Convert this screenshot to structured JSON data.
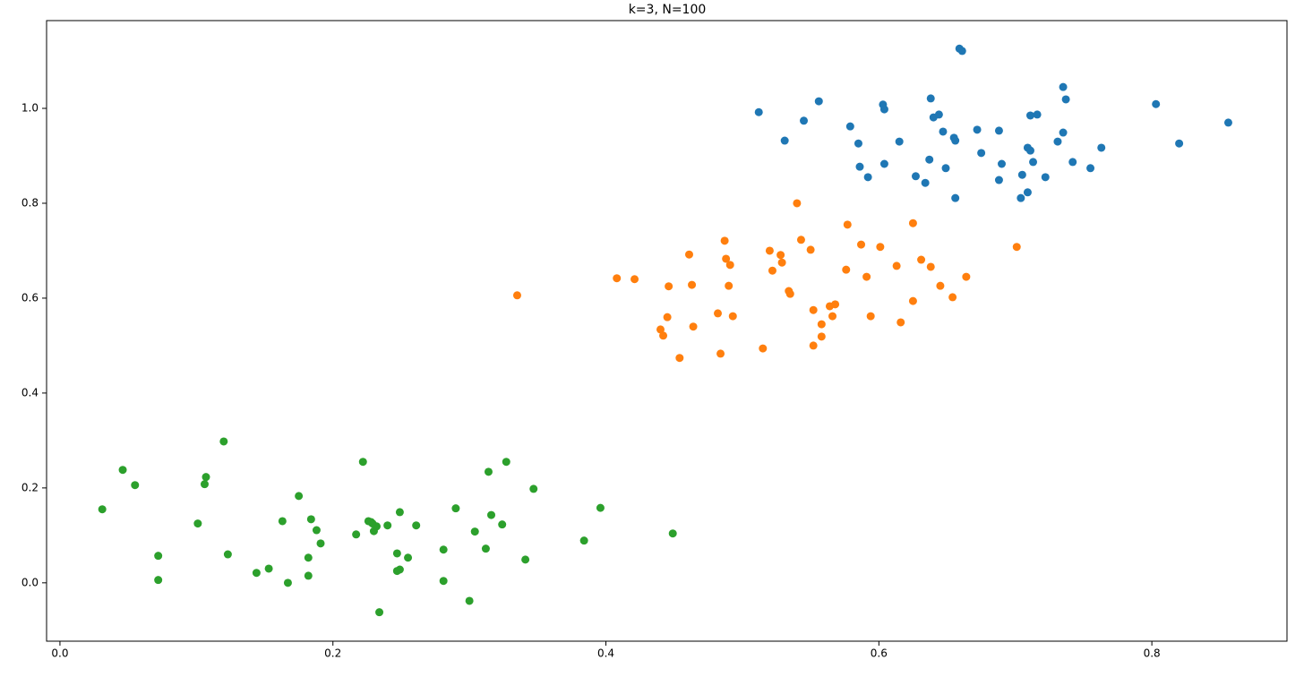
{
  "chart_data": {
    "type": "scatter",
    "title": "k=3, N=100",
    "xlim": [
      -0.0098,
      0.899
    ],
    "ylim": [
      -0.123,
      1.185
    ],
    "xticks": [
      {
        "value": 0,
        "label": "0.0"
      },
      0.2,
      0.4,
      0.6,
      0.8
    ],
    "yticks": [
      {
        "value": 0,
        "label": "0.0"
      },
      0.2,
      0.4,
      0.6,
      0.8,
      {
        "value": 1,
        "label": "1.0"
      }
    ],
    "grid": false,
    "series": [
      {
        "color": "#1f77b4",
        "x": [
          0.512,
          0.531,
          0.545,
          0.556,
          0.579,
          0.585,
          0.586,
          0.592,
          0.603,
          0.604,
          0.604,
          0.615,
          0.627,
          0.634,
          0.637,
          0.638,
          0.64,
          0.644,
          0.647,
          0.649,
          0.655,
          0.656,
          0.656,
          0.659,
          0.661,
          0.672,
          0.675,
          0.688,
          0.688,
          0.69,
          0.704,
          0.705,
          0.709,
          0.709,
          0.711,
          0.711,
          0.713,
          0.716,
          0.722,
          0.731,
          0.735,
          0.735,
          0.737,
          0.742,
          0.755,
          0.763,
          0.803,
          0.82,
          0.856
        ],
        "values": [
          0.992,
          0.932,
          0.974,
          1.015,
          0.962,
          0.926,
          0.877,
          0.855,
          1.008,
          0.998,
          0.883,
          0.93,
          0.857,
          0.843,
          0.892,
          1.021,
          0.981,
          0.987,
          0.951,
          0.874,
          0.938,
          0.932,
          0.811,
          1.126,
          1.121,
          0.955,
          0.906,
          0.953,
          0.849,
          0.883,
          0.811,
          0.86,
          0.917,
          0.823,
          0.911,
          0.985,
          0.887,
          0.987,
          0.855,
          0.93,
          1.045,
          0.949,
          1.019,
          0.887,
          0.874,
          0.917,
          1.009,
          0.926,
          0.97
        ]
      },
      {
        "color": "#ff7f0e",
        "x": [
          0.335,
          0.408,
          0.421,
          0.44,
          0.442,
          0.445,
          0.446,
          0.454,
          0.461,
          0.463,
          0.464,
          0.482,
          0.484,
          0.487,
          0.488,
          0.49,
          0.491,
          0.493,
          0.515,
          0.52,
          0.522,
          0.528,
          0.529,
          0.534,
          0.535,
          0.54,
          0.543,
          0.55,
          0.552,
          0.552,
          0.558,
          0.558,
          0.564,
          0.566,
          0.568,
          0.576,
          0.577,
          0.587,
          0.591,
          0.594,
          0.601,
          0.613,
          0.616,
          0.625,
          0.625,
          0.631,
          0.638,
          0.645,
          0.654,
          0.664,
          0.701
        ],
        "values": [
          0.606,
          0.642,
          0.64,
          0.534,
          0.521,
          0.56,
          0.625,
          0.474,
          0.692,
          0.628,
          0.54,
          0.568,
          0.483,
          0.721,
          0.683,
          0.626,
          0.67,
          0.562,
          0.494,
          0.7,
          0.658,
          0.691,
          0.675,
          0.615,
          0.609,
          0.8,
          0.723,
          0.702,
          0.575,
          0.5,
          0.545,
          0.519,
          0.583,
          0.562,
          0.587,
          0.66,
          0.755,
          0.713,
          0.645,
          0.562,
          0.708,
          0.668,
          0.549,
          0.594,
          0.758,
          0.681,
          0.666,
          0.626,
          0.602,
          0.645,
          0.708
        ]
      },
      {
        "color": "#2ca02c",
        "x": [
          0.031,
          0.046,
          0.055,
          0.072,
          0.072,
          0.101,
          0.106,
          0.107,
          0.12,
          0.123,
          0.144,
          0.153,
          0.163,
          0.167,
          0.175,
          0.182,
          0.182,
          0.184,
          0.188,
          0.191,
          0.217,
          0.222,
          0.226,
          0.228,
          0.229,
          0.23,
          0.232,
          0.234,
          0.24,
          0.247,
          0.247,
          0.249,
          0.249,
          0.255,
          0.261,
          0.281,
          0.281,
          0.29,
          0.3,
          0.304,
          0.312,
          0.314,
          0.316,
          0.324,
          0.327,
          0.341,
          0.347,
          0.384,
          0.396,
          0.449
        ],
        "values": [
          0.155,
          0.238,
          0.206,
          0.057,
          0.006,
          0.125,
          0.208,
          0.223,
          0.298,
          0.06,
          0.021,
          0.03,
          0.13,
          0.0,
          0.183,
          0.053,
          0.015,
          0.134,
          0.111,
          0.083,
          0.102,
          0.255,
          0.13,
          0.128,
          0.125,
          0.109,
          0.119,
          -0.062,
          0.121,
          0.062,
          0.025,
          0.028,
          0.149,
          0.053,
          0.121,
          0.07,
          0.004,
          0.157,
          -0.038,
          0.108,
          0.072,
          0.234,
          0.143,
          0.123,
          0.255,
          0.049,
          0.198,
          0.089,
          0.158,
          0.104
        ]
      }
    ]
  }
}
